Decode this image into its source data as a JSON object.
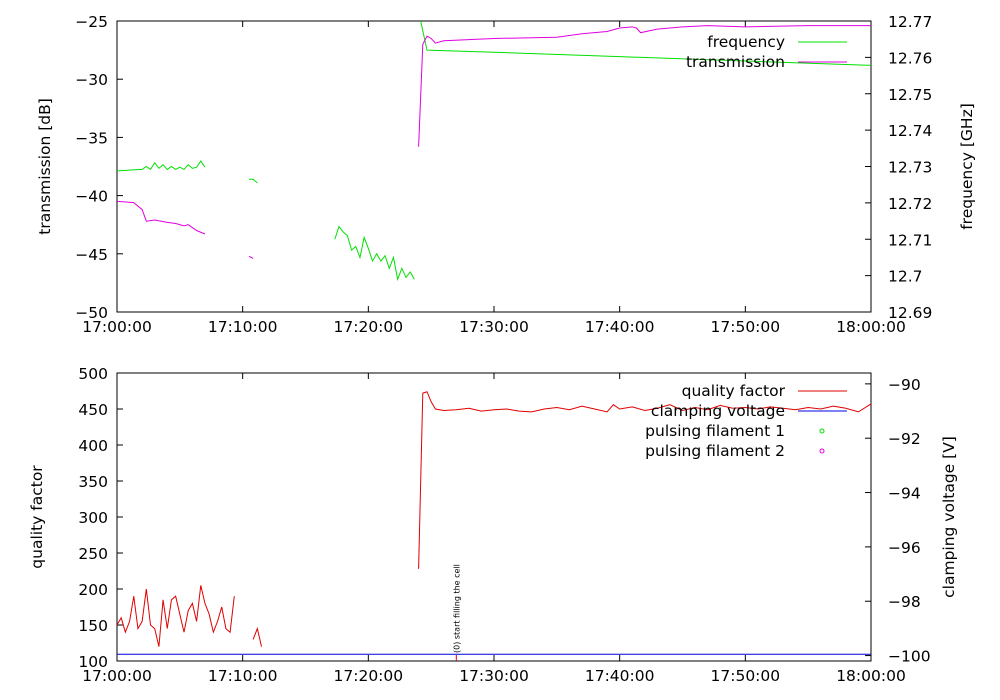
{
  "chart_data": [
    {
      "type": "line",
      "xlabel": "",
      "ylabel": "transmission [dB]",
      "y2label": "frequency [GHz]",
      "xlim": [
        "17:00:00",
        "18:00:00"
      ],
      "ylim": [
        -50,
        -25
      ],
      "y2lim": [
        12.69,
        12.77
      ],
      "x_ticks": [
        "17:00:00",
        "17:10:00",
        "17:20:00",
        "17:30:00",
        "17:40:00",
        "17:50:00",
        "18:00:00"
      ],
      "y_ticks": [
        "-25",
        "-30",
        "-35",
        "-40",
        "-45",
        "-50"
      ],
      "y2_ticks": [
        "12.77",
        "12.76",
        "12.75",
        "12.74",
        "12.73",
        "12.72",
        "12.71",
        "12.7",
        "12.69"
      ],
      "legend_position": "top-right",
      "series": [
        {
          "name": "frequency",
          "axis": "y2",
          "color": "#00e000",
          "segments": [
            [
              [
                "17:00:00",
                12.7288
              ],
              [
                "17:02:00",
                12.7292
              ],
              [
                "17:02:20",
                12.73
              ],
              [
                "17:02:40",
                12.7292
              ],
              [
                "17:03:00",
                12.731
              ],
              [
                "17:03:20",
                12.7295
              ],
              [
                "17:03:40",
                12.7305
              ],
              [
                "17:04:00",
                12.7292
              ],
              [
                "17:04:20",
                12.73
              ],
              [
                "17:04:40",
                12.7292
              ],
              [
                "17:05:00",
                12.7298
              ],
              [
                "17:05:20",
                12.7292
              ],
              [
                "17:05:40",
                12.7305
              ],
              [
                "17:06:00",
                12.7295
              ],
              [
                "17:06:20",
                12.7298
              ],
              [
                "17:06:40",
                12.7315
              ],
              [
                "17:07:00",
                12.7298
              ]
            ],
            [
              [
                "17:10:30",
                12.7265
              ],
              [
                "17:10:50",
                12.7265
              ],
              [
                "17:11:10",
                12.7255
              ]
            ],
            [
              [
                "17:17:20",
                12.71
              ],
              [
                "17:17:40",
                12.7135
              ],
              [
                "17:18:00",
                12.712
              ],
              [
                "17:18:20",
                12.711
              ],
              [
                "17:18:40",
                12.707
              ],
              [
                "17:19:00",
                12.708
              ],
              [
                "17:19:20",
                12.705
              ],
              [
                "17:19:40",
                12.7105
              ],
              [
                "17:20:00",
                12.7075
              ],
              [
                "17:20:20",
                12.704
              ],
              [
                "17:20:40",
                12.706
              ],
              [
                "17:21:00",
                12.704
              ],
              [
                "17:21:20",
                12.7055
              ],
              [
                "17:21:40",
                12.702
              ],
              [
                "17:22:00",
                12.705
              ],
              [
                "17:22:20",
                12.699
              ],
              [
                "17:22:40",
                12.702
              ],
              [
                "17:23:00",
                12.6995
              ],
              [
                "17:23:20",
                12.701
              ],
              [
                "17:23:40",
                12.699
              ]
            ],
            [
              [
                "17:24:10",
                12.77
              ],
              [
                "17:24:40",
                12.762
              ],
              [
                "17:30:00",
                12.7614
              ],
              [
                "17:40:00",
                12.7602
              ],
              [
                "17:50:00",
                12.759
              ],
              [
                "18:00:00",
                12.7578
              ]
            ]
          ]
        },
        {
          "name": "transmission",
          "axis": "y",
          "color": "#e000e0",
          "segments": [
            [
              [
                "17:00:00",
                -40.5
              ],
              [
                "17:01:20",
                -40.6
              ],
              [
                "17:02:00",
                -41.2
              ],
              [
                "17:02:20",
                -42.2
              ],
              [
                "17:03:00",
                -42.1
              ],
              [
                "17:04:00",
                -42.3
              ],
              [
                "17:04:40",
                -42.4
              ],
              [
                "17:05:20",
                -42.6
              ],
              [
                "17:05:40",
                -42.5
              ],
              [
                "17:06:20",
                -43.0
              ],
              [
                "17:07:00",
                -43.3
              ]
            ],
            [
              [
                "17:10:30",
                -45.2
              ],
              [
                "17:10:50",
                -45.4
              ]
            ],
            [
              [
                "17:24:00",
                -35.8
              ],
              [
                "17:24:20",
                -27.0
              ],
              [
                "17:24:40",
                -26.3
              ],
              [
                "17:25:00",
                -26.5
              ],
              [
                "17:25:20",
                -26.9
              ],
              [
                "17:26:00",
                -26.7
              ],
              [
                "17:30:00",
                -26.5
              ],
              [
                "17:35:00",
                -26.4
              ],
              [
                "17:37:00",
                -26.1
              ],
              [
                "17:39:00",
                -25.9
              ],
              [
                "17:40:00",
                -25.6
              ],
              [
                "17:41:00",
                -25.5
              ],
              [
                "17:41:20",
                -25.6
              ],
              [
                "17:41:40",
                -26.0
              ],
              [
                "17:43:00",
                -25.7
              ],
              [
                "17:45:00",
                -25.5
              ],
              [
                "17:47:00",
                -25.4
              ],
              [
                "17:50:00",
                -25.5
              ],
              [
                "17:55:00",
                -25.4
              ],
              [
                "18:00:00",
                -25.4
              ]
            ]
          ]
        }
      ]
    },
    {
      "type": "line",
      "xlabel": "",
      "ylabel": "quality factor",
      "y2label": "clamping voltage [V]",
      "xlim": [
        "17:00:00",
        "18:00:00"
      ],
      "ylim": [
        100,
        500
      ],
      "y2lim": [
        -100.2,
        -89.6
      ],
      "x_ticks": [
        "17:00:00",
        "17:10:00",
        "17:20:00",
        "17:30:00",
        "17:40:00",
        "17:50:00",
        "18:00:00"
      ],
      "y_ticks": [
        "500",
        "450",
        "400",
        "350",
        "300",
        "250",
        "200",
        "150",
        "100"
      ],
      "y2_ticks": [
        "-90",
        "-92",
        "-94",
        "-96",
        "-98",
        "-100"
      ],
      "legend_position": "top-right",
      "annotation": "(0) start filling the cell",
      "annotation_x": "17:27:00",
      "series": [
        {
          "name": "quality factor",
          "axis": "y",
          "color": "#e00000",
          "segments": [
            [
              [
                "17:00:00",
                150
              ],
              [
                "17:00:20",
                160
              ],
              [
                "17:00:40",
                140
              ],
              [
                "17:01:00",
                155
              ],
              [
                "17:01:20",
                190
              ],
              [
                "17:01:40",
                145
              ],
              [
                "17:02:00",
                155
              ],
              [
                "17:02:20",
                200
              ],
              [
                "17:02:40",
                150
              ],
              [
                "17:03:00",
                145
              ],
              [
                "17:03:20",
                120
              ],
              [
                "17:03:40",
                185
              ],
              [
                "17:04:00",
                145
              ],
              [
                "17:04:20",
                185
              ],
              [
                "17:04:40",
                190
              ],
              [
                "17:05:00",
                165
              ],
              [
                "17:05:20",
                140
              ],
              [
                "17:05:40",
                170
              ],
              [
                "17:06:00",
                180
              ],
              [
                "17:06:20",
                155
              ],
              [
                "17:06:40",
                205
              ],
              [
                "17:07:00",
                180
              ],
              [
                "17:07:20",
                165
              ],
              [
                "17:07:40",
                140
              ],
              [
                "17:08:00",
                155
              ],
              [
                "17:08:20",
                175
              ],
              [
                "17:08:40",
                145
              ],
              [
                "17:09:00",
                140
              ],
              [
                "17:09:20",
                190
              ]
            ],
            [
              [
                "17:10:50",
                130
              ],
              [
                "17:11:10",
                145
              ],
              [
                "17:11:30",
                120
              ]
            ],
            [
              [
                "17:24:00",
                228
              ],
              [
                "17:24:20",
                472
              ],
              [
                "17:24:40",
                474
              ],
              [
                "17:25:00",
                460
              ],
              [
                "17:25:20",
                450
              ],
              [
                "17:26:00",
                448
              ],
              [
                "17:27:00",
                449
              ],
              [
                "17:28:00",
                451
              ],
              [
                "17:29:00",
                447
              ],
              [
                "17:30:00",
                449
              ],
              [
                "17:31:00",
                450
              ],
              [
                "17:32:00",
                447
              ],
              [
                "17:33:00",
                446
              ],
              [
                "17:34:00",
                450
              ],
              [
                "17:35:00",
                452
              ],
              [
                "17:36:00",
                449
              ],
              [
                "17:37:00",
                454
              ],
              [
                "17:38:00",
                450
              ],
              [
                "17:39:00",
                446
              ],
              [
                "17:39:30",
                456
              ],
              [
                "17:40:00",
                450
              ],
              [
                "17:41:00",
                453
              ],
              [
                "17:42:00",
                448
              ],
              [
                "17:43:00",
                451
              ],
              [
                "17:44:00",
                456
              ],
              [
                "17:45:00",
                448
              ],
              [
                "17:46:00",
                452
              ],
              [
                "17:47:00",
                449
              ],
              [
                "17:48:00",
                455
              ],
              [
                "17:49:00",
                451
              ],
              [
                "17:50:00",
                452
              ],
              [
                "17:51:00",
                450
              ],
              [
                "17:52:00",
                453
              ],
              [
                "17:53:00",
                451
              ],
              [
                "17:54:00",
                449
              ],
              [
                "17:55:00",
                452
              ],
              [
                "17:56:00",
                450
              ],
              [
                "17:57:00",
                454
              ],
              [
                "17:58:00",
                451
              ],
              [
                "17:59:00",
                446
              ],
              [
                "18:00:00",
                457
              ]
            ]
          ]
        },
        {
          "name": "clamping voltage",
          "axis": "y2",
          "color": "#0000e0",
          "segments": [
            [
              [
                "17:00:00",
                -99.95
              ],
              [
                "18:00:00",
                -99.95
              ]
            ]
          ]
        },
        {
          "name": "pulsing filament 1",
          "axis": "y",
          "color": "#00e000",
          "marker": "circle",
          "points": []
        },
        {
          "name": "pulsing filament 2",
          "axis": "y",
          "color": "#e000e0",
          "marker": "circle",
          "points": []
        }
      ]
    }
  ]
}
